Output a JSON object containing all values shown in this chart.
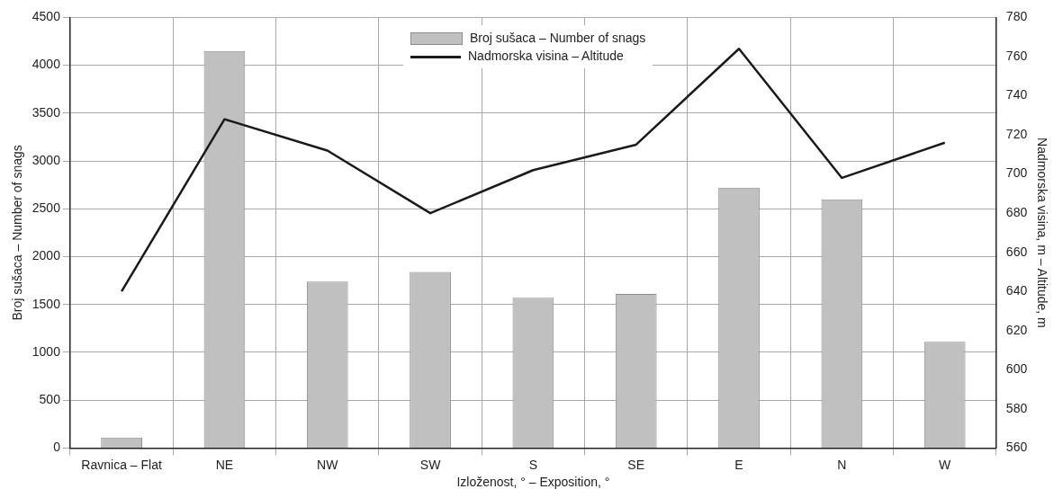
{
  "chart_data": {
    "type": "bar",
    "xlabel": "Izloženost, ° – Exposition, °",
    "ylabel": "Broj sušaca – Number of snags",
    "y2label": "Nadmorska visina, m – Altitude, m",
    "categories": [
      "Ravnica – Flat",
      "NE",
      "NW",
      "SW",
      "S",
      "SE",
      "E",
      "N",
      "W"
    ],
    "series": [
      {
        "name": "Broj sušaca – Number of snags",
        "color": "#c0c0c0",
        "values": [
          110,
          4150,
          1740,
          1840,
          1570,
          1610,
          2720,
          2600,
          1110
        ]
      },
      {
        "name": "Nadmorska visina – Altitude",
        "type": "line",
        "axis": "y2",
        "color": "#1a1a1a",
        "values": [
          640,
          728,
          712,
          680,
          702,
          715,
          764,
          698,
          716
        ]
      }
    ],
    "ylim": [
      0,
      4500
    ],
    "yticks": [
      0,
      500,
      1000,
      1500,
      2000,
      2500,
      3000,
      3500,
      4000,
      4500
    ],
    "y2lim": [
      560,
      780
    ],
    "y2ticks": [
      560,
      580,
      600,
      620,
      640,
      660,
      680,
      700,
      720,
      740,
      760,
      780
    ],
    "grid": true,
    "legend": "top",
    "marker": "none"
  }
}
